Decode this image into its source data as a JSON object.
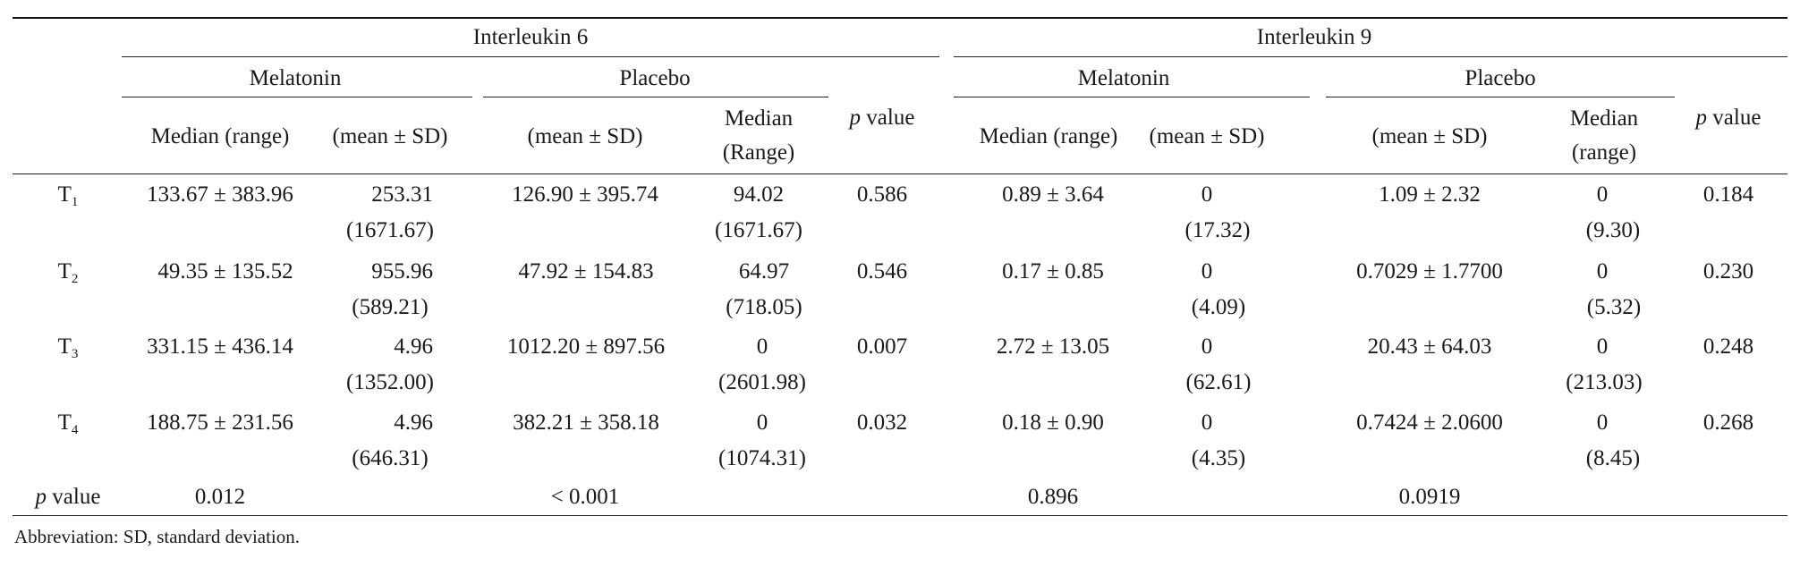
{
  "table": {
    "groups": [
      "Interleukin 6",
      "Interleukin 9"
    ],
    "subgroups": [
      "Melatonin",
      "Placebo",
      "Melatonin",
      "Placebo"
    ],
    "col_headers": {
      "c1": "Median (range)",
      "c2": "(mean ± SD)",
      "c3": "(mean ± SD)",
      "c4_line1": "Median",
      "c4_line2": "(Range)",
      "c5": "value",
      "c5_p": "p",
      "c6": "Median (range)",
      "c7": "(mean ± SD)",
      "c8": "(mean ± SD)",
      "c9_line1": "Median",
      "c9_line2": "(range)",
      "c10": "value",
      "c10_p": "p"
    },
    "rows": [
      {
        "label": "T",
        "sub": "1",
        "c1": "133.67 ± 383.96",
        "c2": "253.31",
        "c2b": "(1671.67)",
        "c3": "126.90 ± 395.74",
        "c4": "94.02",
        "c4b": "(1671.67)",
        "c5": "0.586",
        "c6": "0.89 ± 3.64",
        "c7": "0",
        "c7b": "(17.32)",
        "c8": "1.09 ± 2.32",
        "c9": "0",
        "c9b": "(9.30)",
        "c10": "0.184"
      },
      {
        "label": "T",
        "sub": "2",
        "c1": "49.35 ± 135.52",
        "c2": "955.96",
        "c2b": "(589.21)",
        "c3": "47.92 ± 154.83",
        "c4": "64.97",
        "c4b": "(718.05)",
        "c5": "0.546",
        "c6": "0.17 ± 0.85",
        "c7": "0",
        "c7b": "(4.09)",
        "c8": "0.7029 ± 1.7700",
        "c9": "0",
        "c9b": "(5.32)",
        "c10": "0.230"
      },
      {
        "label": "T",
        "sub": "3",
        "c1": "331.15 ± 436.14",
        "c2": "4.96",
        "c2b": "(1352.00)",
        "c3": "1012.20 ± 897.56",
        "c4": "0",
        "c4b": "(2601.98)",
        "c5": "0.007",
        "c6": "2.72 ± 13.05",
        "c7": "0",
        "c7b": "(62.61)",
        "c8": "20.43 ± 64.03",
        "c9": "0",
        "c9b": "(213.03)",
        "c10": "0.248"
      },
      {
        "label": "T",
        "sub": "4",
        "c1": "188.75 ± 231.56",
        "c2": "4.96",
        "c2b": "(646.31)",
        "c3": "382.21 ± 358.18",
        "c4": "0",
        "c4b": "(1074.31)",
        "c5": "0.032",
        "c6": "0.18 ± 0.90",
        "c7": "0",
        "c7b": "(4.35)",
        "c8": "0.7424 ± 2.0600",
        "c9": "0",
        "c9b": "(8.45)",
        "c10": "0.268"
      }
    ],
    "pvalue_row": {
      "label_p": "p",
      "label": "value",
      "il6_melatonin": "0.012",
      "il6_placebo": "< 0.001",
      "il9_melatonin": "0.896",
      "il9_placebo": "0.0919"
    },
    "footnote": "Abbreviation: SD, standard deviation."
  }
}
